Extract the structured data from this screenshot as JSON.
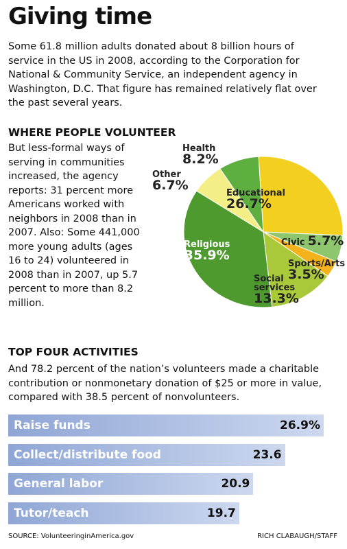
{
  "title": "Giving time",
  "intro": "Some 61.8 million adults donated about 8 billion hours of service in the US in 2008, according to the Corporation for National & Community Service, an independent agency in Washington, D.C. That figure has remained relatively flat over the past several years.",
  "chart_data": [
    {
      "type": "pie",
      "title": "WHERE PEOPLE VOLUNTEER",
      "description": "But less-formal ways of serving in communities increased, the agency reports: 31 percent more Americans worked with neighbors in 2008 than in 2007. Also: Some 441,000 more young adults (ages 16 to 24) volunteered in 2008 than in 2007, up 5.7 percent to more than 8.2 million.",
      "categories": [
        "Educational",
        "Civic",
        "Sports/Arts",
        "Social services",
        "Religious",
        "Other",
        "Health"
      ],
      "values": [
        26.7,
        5.7,
        3.5,
        13.3,
        35.9,
        6.7,
        8.2
      ],
      "value_labels": [
        "26.7%",
        "5.7%",
        "3.5%",
        "13.3%",
        "35.9%",
        "6.7%",
        "8.2%"
      ],
      "colors": [
        "#f3cf1f",
        "#8dc66c",
        "#f4b21c",
        "#a9c83a",
        "#4e9a2f",
        "#f3ee86",
        "#5fae40"
      ]
    },
    {
      "type": "bar",
      "title": "TOP FOUR ACTIVITIES",
      "description": "And 78.2 percent of the nation’s volunteers made a charitable contribution or nonmonetary donation of $25 or more in value, compared with 38.5 percent of nonvolunteers.",
      "categories": [
        "Raise funds",
        "Collect/distribute food",
        "General labor",
        "Tutor/teach"
      ],
      "values": [
        26.9,
        23.6,
        20.9,
        19.7
      ],
      "value_labels": [
        "26.9%",
        "23.6",
        "20.9",
        "19.7"
      ],
      "color": "#8fa6d5"
    }
  ],
  "source": "SOURCE: VolunteeringinAmerica.gov",
  "credit": "RICH CLABAUGH/STAFF"
}
